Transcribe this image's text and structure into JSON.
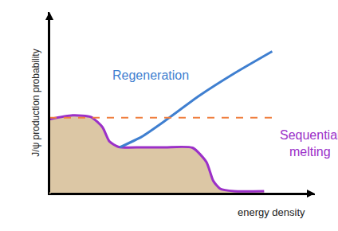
{
  "chart_data": {
    "type": "line",
    "x_label": "energy density",
    "y_label": "J/ψ production probability",
    "xlim": [
      0,
      11.5
    ],
    "ylim": [
      0,
      11.5
    ],
    "xticks": [],
    "yticks": [],
    "tick_labels": false,
    "grid": false,
    "series": [
      {
        "name": "Sequential melting",
        "type": "area",
        "color": "#9b30c8",
        "line_style": "solid",
        "x": [
          0,
          1.0,
          1.8,
          2.3,
          2.6,
          3.0,
          4.0,
          5.0,
          6.2,
          6.8,
          7.1,
          7.4,
          8.0,
          9.3
        ],
        "values": [
          4.7,
          4.95,
          4.85,
          4.2,
          3.3,
          2.95,
          2.93,
          2.93,
          2.9,
          2.0,
          0.8,
          0.3,
          0.15,
          0.15
        ]
      },
      {
        "name": "Regeneration",
        "type": "line",
        "color": "#3f7fd0",
        "line_style": "solid",
        "x": [
          3.05,
          4.0,
          5.0,
          6.5,
          8.0,
          9.65
        ],
        "values": [
          2.93,
          3.6,
          4.6,
          6.2,
          7.6,
          9.0
        ]
      },
      {
        "type": "line",
        "color": "#f08040",
        "line_style": "dash",
        "x": [
          0,
          9.9
        ],
        "values": [
          4.8,
          4.8
        ]
      }
    ]
  }
}
